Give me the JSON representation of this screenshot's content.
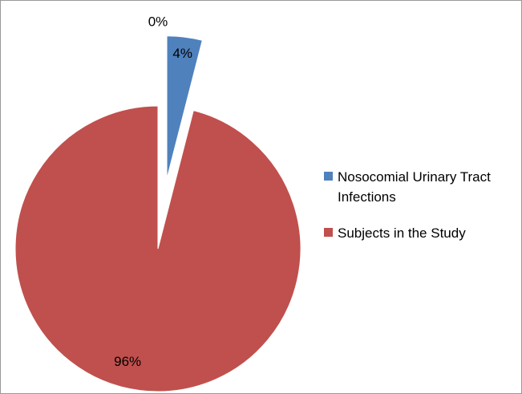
{
  "chart_data": {
    "type": "pie",
    "categories": [
      "Nosocomial Urinary Tract Infections",
      "Subjects in the Study",
      null
    ],
    "values": [
      4,
      96,
      0
    ],
    "value_labels": [
      "4%",
      "96%",
      "0%"
    ],
    "colors": [
      "#4f81bd",
      "#c0504d",
      null
    ],
    "legend": "right"
  }
}
